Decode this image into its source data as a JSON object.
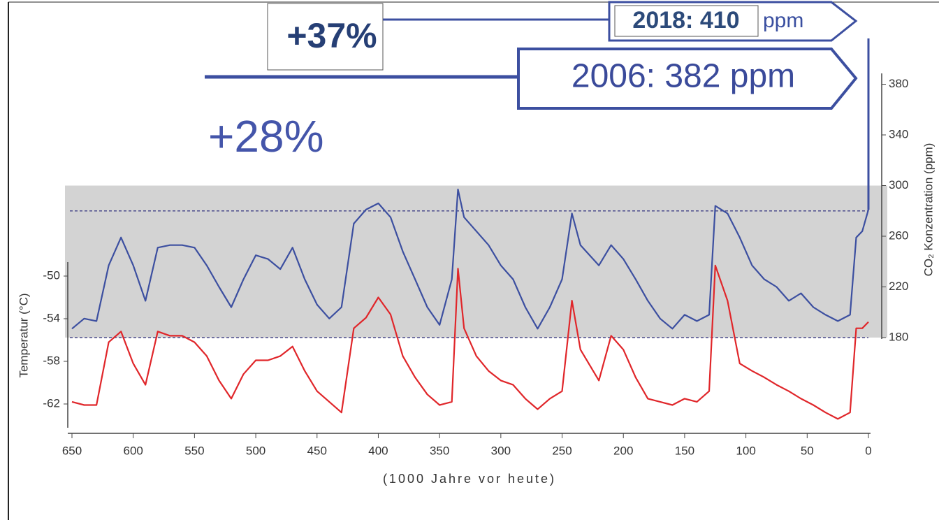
{
  "chart_data": {
    "type": "line",
    "annotations": [
      "+37%",
      "2018: 410",
      "ppm",
      "2006: 382 ppm",
      "+28%"
    ],
    "xlabel": "(1000 Jahre vor heute)",
    "ylabel": "Temperatur (°C)",
    "y2label": "CO₂ Konzentration (ppm)",
    "x": [
      650,
      640,
      630,
      620,
      610,
      600,
      590,
      580,
      570,
      560,
      550,
      540,
      530,
      520,
      510,
      500,
      490,
      480,
      470,
      460,
      450,
      440,
      430,
      420,
      410,
      400,
      390,
      380,
      370,
      360,
      350,
      340,
      335,
      330,
      320,
      310,
      300,
      290,
      280,
      270,
      260,
      250,
      242,
      235,
      220,
      210,
      200,
      190,
      180,
      170,
      160,
      150,
      140,
      130,
      125,
      115,
      105,
      95,
      85,
      75,
      65,
      55,
      45,
      35,
      25,
      15,
      10,
      5,
      0
    ],
    "xlim": [
      650,
      0
    ],
    "xticks": [
      650,
      600,
      550,
      500,
      450,
      400,
      350,
      300,
      250,
      200,
      150,
      100,
      50,
      0
    ],
    "ylim": [
      -64,
      -48
    ],
    "yticks": [
      -50,
      -54,
      -58,
      -62
    ],
    "y2lim": [
      180,
      390
    ],
    "y2ticks": [
      180,
      220,
      260,
      300,
      340,
      380
    ],
    "y2_band": [
      180,
      300
    ],
    "y2_reference_lines": [
      280,
      180
    ],
    "series": [
      {
        "color": "#3c4fa0",
        "axis": "y2",
        "values": [
          187,
          195,
          193,
          237,
          259,
          237,
          209,
          251,
          253,
          253,
          251,
          237,
          220,
          204,
          226,
          245,
          242,
          234,
          251,
          226,
          206,
          195,
          204,
          270,
          281,
          286,
          275,
          248,
          226,
          204,
          190,
          226,
          297,
          275,
          264,
          253,
          237,
          226,
          204,
          187,
          204,
          226,
          278,
          253,
          237,
          253,
          242,
          226,
          209,
          195,
          187,
          198,
          193,
          198,
          284,
          278,
          259,
          237,
          226,
          220,
          209,
          215,
          204,
          198,
          193,
          198,
          259,
          264,
          281
        ]
      },
      {
        "color": "#e0262a",
        "axis": "y",
        "values": [
          -61.8,
          -62.1,
          -62.1,
          -56.2,
          -55.2,
          -58.2,
          -60.2,
          -55.2,
          -55.6,
          -55.6,
          -56.2,
          -57.5,
          -59.8,
          -61.5,
          -59.2,
          -57.9,
          -57.9,
          -57.5,
          -56.6,
          -58.9,
          -60.8,
          -61.8,
          -62.8,
          -54.9,
          -53.9,
          -52.0,
          -53.6,
          -57.5,
          -59.5,
          -61.1,
          -62.1,
          -61.8,
          -49.3,
          -54.9,
          -57.5,
          -58.9,
          -59.8,
          -60.2,
          -61.5,
          -62.5,
          -61.5,
          -60.8,
          -52.3,
          -56.9,
          -59.8,
          -55.6,
          -56.9,
          -59.5,
          -61.5,
          -61.8,
          -62.1,
          -61.5,
          -61.8,
          -60.8,
          -49.0,
          -52.3,
          -58.2,
          -58.9,
          -59.5,
          -60.2,
          -60.8,
          -61.5,
          -62.1,
          -62.8,
          -63.4,
          -62.8,
          -54.9,
          -54.9,
          -54.3
        ]
      }
    ]
  }
}
